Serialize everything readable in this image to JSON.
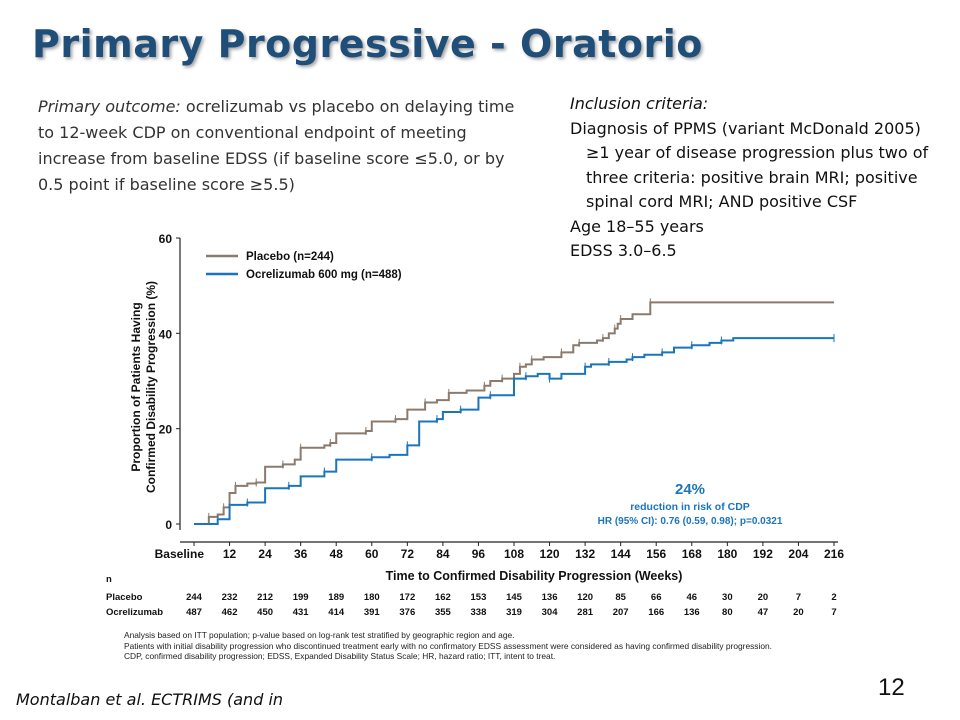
{
  "title": "Primary Progressive - Oratorio",
  "outcome": {
    "lead": "Primary outcome:",
    "text": " ocrelizumab vs placebo on delaying time to 12-week CDP on conventional endpoint of meeting increase from baseline EDSS (if baseline score ≤5.0, or by 0.5 point if baseline score ≥5.5)"
  },
  "inclusion": {
    "heading": "Inclusion criteria:",
    "diagnosis": "Diagnosis of PPMS (variant McDonald 2005)",
    "progression": "≥1 year of disease progression plus two of three criteria: positive brain MRI; positive spinal cord MRI; AND positive CSF",
    "age": "Age 18–55 years",
    "edss": "EDSS 3.0–6.5"
  },
  "slide_number": "12",
  "citation": "Montalban et al. ECTRIMS (and in",
  "chart_data": {
    "type": "line",
    "step": true,
    "ylabel_line1": "Proportion of Patients Having",
    "ylabel_line2": "Confirmed Disability Progression (%)",
    "xlabel": "Time to Confirmed Disability Progression (Weeks)",
    "ylim": [
      0,
      60
    ],
    "yticks": [
      0,
      20,
      40,
      60
    ],
    "xlim": [
      0,
      216
    ],
    "x_tick_labels": [
      "Baseline",
      "12",
      "24",
      "36",
      "48",
      "60",
      "72",
      "84",
      "96",
      "108",
      "120",
      "132",
      "144",
      "156",
      "168",
      "180",
      "192",
      "204",
      "216"
    ],
    "x_tick_values": [
      0,
      12,
      24,
      36,
      48,
      60,
      72,
      84,
      96,
      108,
      120,
      132,
      144,
      156,
      168,
      180,
      192,
      204,
      216
    ],
    "legend_position": "top-left",
    "series": [
      {
        "name": "Placebo (n=244)",
        "color": "#8B7B6E",
        "x": [
          0,
          5,
          8,
          10,
          12,
          14,
          18,
          21,
          24,
          30,
          34,
          36,
          44,
          46,
          48,
          58,
          60,
          68,
          72,
          78,
          82,
          86,
          92,
          98,
          100,
          104,
          108,
          110,
          112,
          114,
          118,
          124,
          128,
          130,
          136,
          138,
          140,
          142,
          143,
          144,
          148,
          154,
          216
        ],
        "y": [
          0,
          1.5,
          2,
          3.5,
          6.5,
          8,
          8.5,
          8.7,
          12,
          12.5,
          13.5,
          16,
          16.5,
          17,
          19,
          19.5,
          21.5,
          22,
          24,
          25.5,
          26,
          27.5,
          28,
          29,
          30,
          30.5,
          31.5,
          33,
          33.5,
          34.5,
          35,
          36,
          37.5,
          38,
          38.5,
          39,
          40,
          41,
          42,
          43,
          44,
          46.5,
          46.5
        ]
      },
      {
        "name": "Ocrelizumab 600 mg (n=488)",
        "color": "#1B75BB",
        "x": [
          0,
          8,
          12,
          18,
          24,
          32,
          36,
          44,
          48,
          60,
          66,
          72,
          76,
          82,
          84,
          90,
          96,
          100,
          108,
          112,
          116,
          120,
          124,
          132,
          134,
          140,
          146,
          148,
          152,
          158,
          162,
          168,
          174,
          178,
          182,
          216
        ],
        "y": [
          0,
          1,
          4,
          4.5,
          7.5,
          8,
          10,
          11,
          13.5,
          14,
          14.5,
          16.5,
          21.5,
          22,
          23.5,
          24,
          26.5,
          27,
          30.5,
          31,
          31.5,
          30.5,
          31.5,
          33,
          33.5,
          34,
          34.5,
          35,
          35.5,
          36,
          37,
          37.5,
          38,
          38.5,
          39,
          39
        ]
      }
    ],
    "annotation": {
      "percent": "24%",
      "caption": "reduction in risk of CDP",
      "hr": "HR (95% CI): 0.76 (0.59, 0.98); p=0.0321"
    },
    "number_at_risk": {
      "header": "n",
      "rows": [
        {
          "label": "Placebo",
          "values": [
            "244",
            "232",
            "212",
            "199",
            "189",
            "180",
            "172",
            "162",
            "153",
            "145",
            "136",
            "120",
            "85",
            "66",
            "46",
            "30",
            "20",
            "7",
            "2"
          ]
        },
        {
          "label": "Ocrelizumab",
          "values": [
            "487",
            "462",
            "450",
            "431",
            "414",
            "391",
            "376",
            "355",
            "338",
            "319",
            "304",
            "281",
            "207",
            "166",
            "136",
            "80",
            "47",
            "20",
            "7"
          ]
        }
      ]
    },
    "footnotes": [
      "Analysis based on ITT population; p-value based on log-rank test stratified by geographic region and age.",
      "Patients with initial disability progression who discontinued treatment early with no confirmatory EDSS assessment were considered as having confirmed disability progression.",
      "CDP, confirmed disability progression; EDSS, Expanded Disability Status Scale; HR, hazard ratio; ITT, intent to treat."
    ]
  }
}
